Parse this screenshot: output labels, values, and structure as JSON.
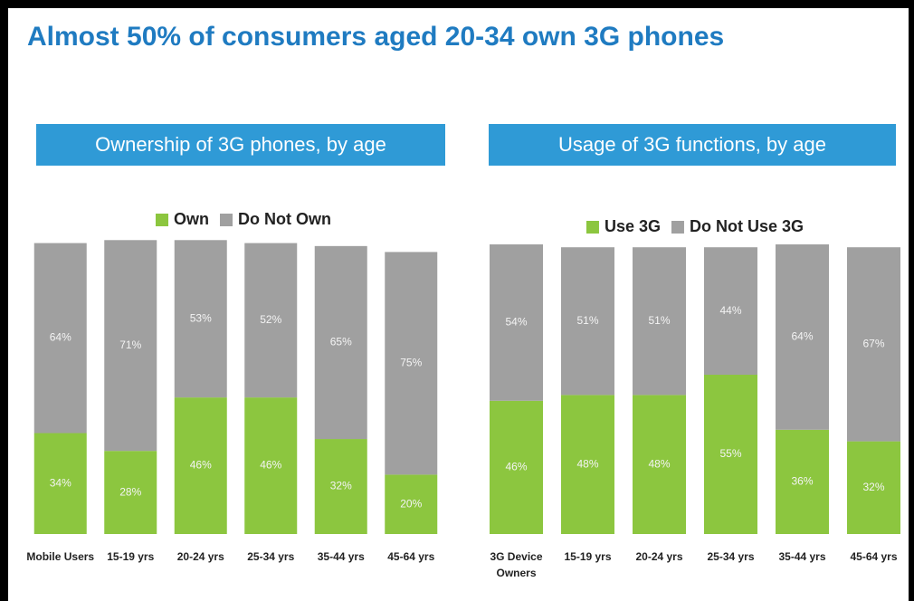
{
  "title": "Almost 50% of consumers aged 20-34 own 3G phones",
  "chart_data": [
    {
      "type": "bar",
      "stacked": true,
      "title": "Ownership of 3G phones, by age",
      "categories": [
        "Mobile Users",
        "15-19 yrs",
        "20-24 yrs",
        "25-34 yrs",
        "35-44 yrs",
        "45-64 yrs"
      ],
      "ylim": [
        0,
        100
      ],
      "series": [
        {
          "name": "Own",
          "color": "#8cc63f",
          "values": [
            34,
            28,
            46,
            46,
            32,
            20
          ],
          "value_labels": [
            "34%",
            "28%",
            "46%",
            "46%",
            "32%",
            "20%"
          ]
        },
        {
          "name": "Do Not Own",
          "color": "#a0a0a0",
          "values": [
            64,
            71,
            53,
            52,
            65,
            75
          ],
          "value_labels": [
            "64%",
            "71%",
            "53%",
            "52%",
            "65%",
            "75%"
          ]
        }
      ]
    },
    {
      "type": "bar",
      "stacked": true,
      "title": "Usage of 3G functions, by age",
      "categories": [
        "3G Device Owners",
        "15-19 yrs",
        "20-24 yrs",
        "25-34 yrs",
        "35-44 yrs",
        "45-64 yrs"
      ],
      "ylim": [
        0,
        100
      ],
      "series": [
        {
          "name": "Use 3G",
          "color": "#8cc63f",
          "values": [
            46,
            48,
            48,
            55,
            36,
            32
          ],
          "value_labels": [
            "46%",
            "48%",
            "48%",
            "55%",
            "36%",
            "32%"
          ]
        },
        {
          "name": "Do Not Use 3G",
          "color": "#a0a0a0",
          "values": [
            54,
            51,
            51,
            44,
            64,
            67
          ],
          "value_labels": [
            "54%",
            "51%",
            "51%",
            "44%",
            "64%",
            "67%"
          ]
        }
      ]
    }
  ]
}
